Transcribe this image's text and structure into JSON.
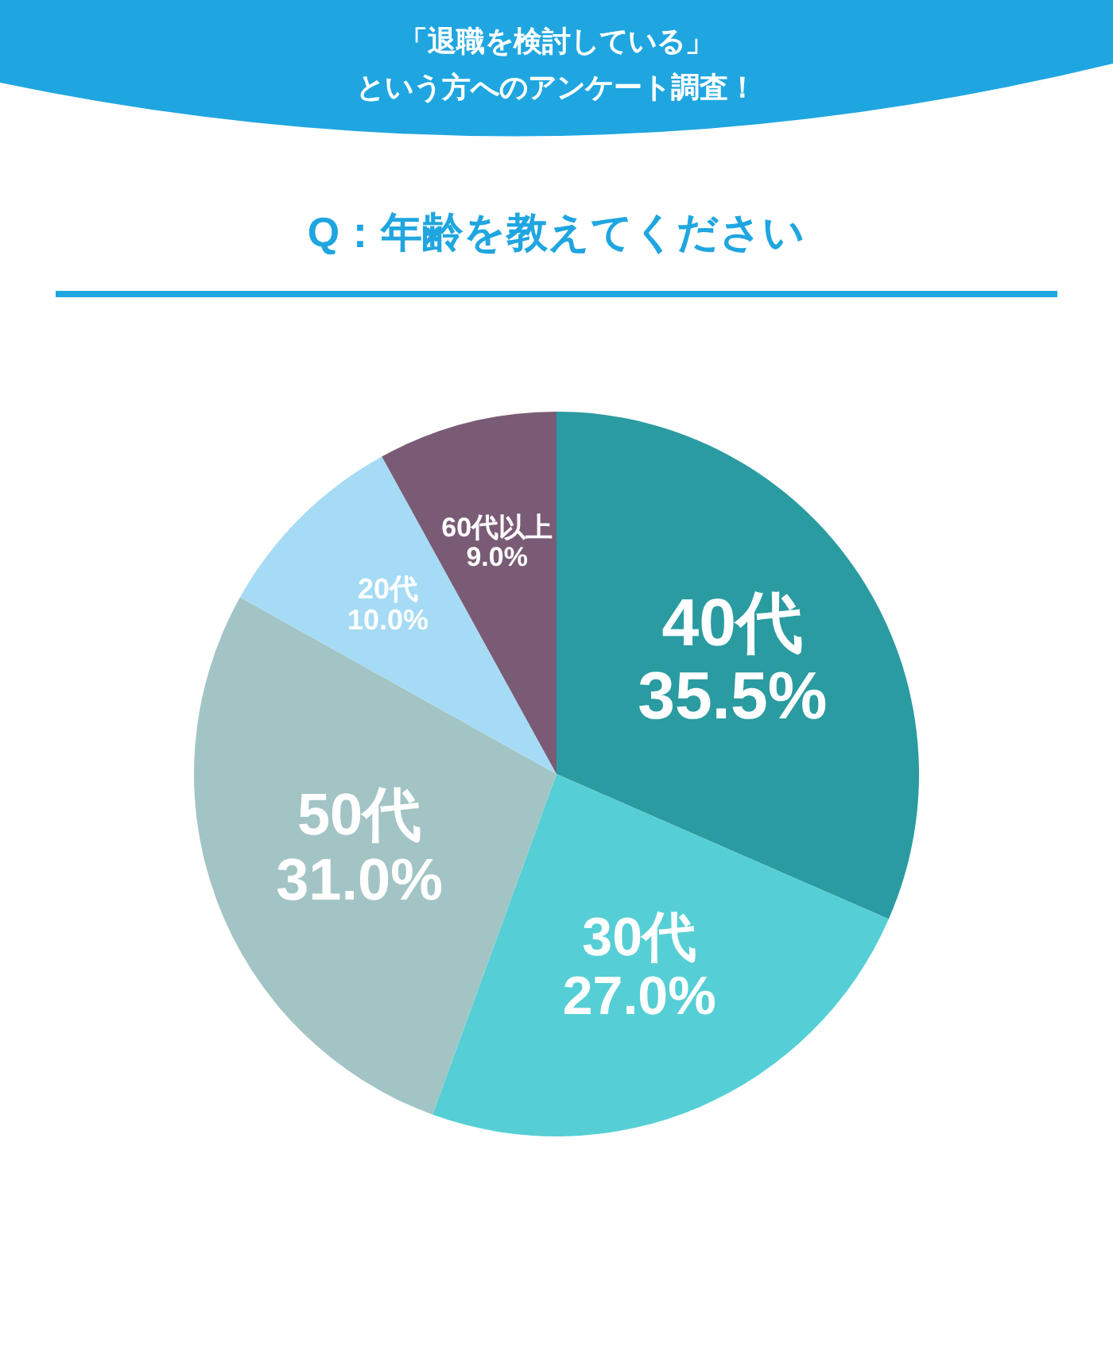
{
  "chart_data": {
    "type": "pie",
    "title": "「退職を検討している」という方へのアンケート調査！",
    "subtitle": "Q：年齢を教えてください",
    "categories": [
      "40代",
      "30代",
      "50代",
      "20代",
      "60代以上"
    ],
    "values": [
      35.5,
      27.0,
      31.0,
      10.0,
      9.0
    ],
    "value_labels": [
      "35.5%",
      "27.0%",
      "31.0%",
      "10.0%",
      "9.0%"
    ],
    "colors": [
      "#2a9ba1",
      "#55cfd5",
      "#a3c4c5",
      "#a6dbf5",
      "#7a5b75"
    ]
  }
}
